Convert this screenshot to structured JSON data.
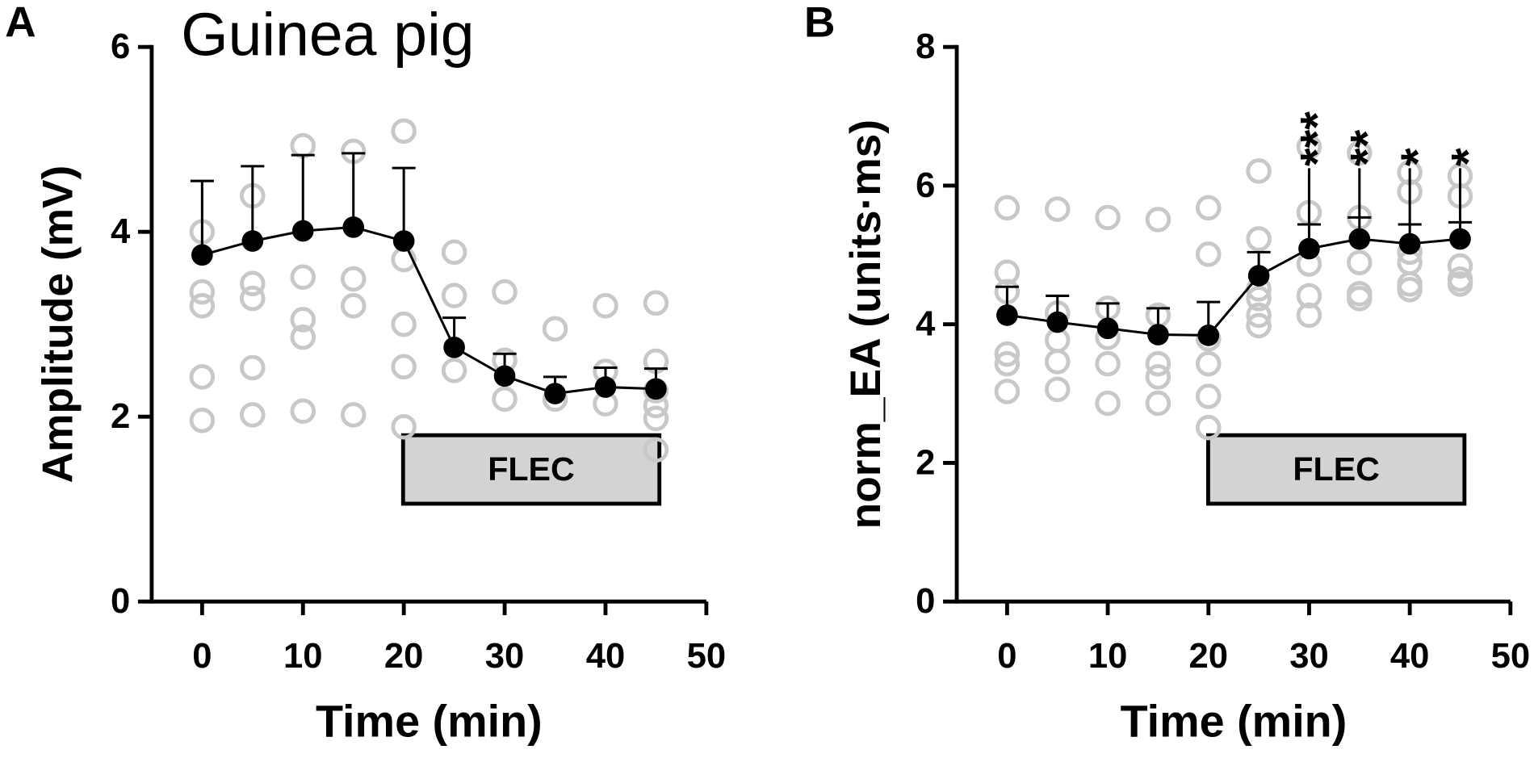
{
  "chart_data": [
    {
      "type": "line",
      "panel_label": "A",
      "title": "Guinea pig",
      "xlabel": "Time (min)",
      "ylabel": "Amplitude (mV)",
      "x": [
        0,
        5,
        10,
        15,
        20,
        25,
        30,
        35,
        40,
        45
      ],
      "values": [
        3.75,
        3.9,
        4.01,
        4.05,
        3.9,
        2.75,
        2.44,
        2.25,
        2.32,
        2.3
      ],
      "errors": [
        0.8,
        0.81,
        0.82,
        0.8,
        0.79,
        0.32,
        0.24,
        0.18,
        0.21,
        0.22
      ],
      "color": "#000000",
      "points": {
        "color": "#c8c8c8",
        "x": [
          0,
          0,
          0,
          0,
          0,
          5,
          5,
          5,
          5,
          5,
          10,
          10,
          10,
          10,
          10,
          15,
          15,
          15,
          15,
          20,
          20,
          20,
          20,
          20,
          25,
          25,
          25,
          30,
          30,
          30,
          35,
          35,
          40,
          40,
          40,
          45,
          45,
          45,
          45,
          45,
          45
        ],
        "y": [
          4.0,
          3.35,
          3.2,
          2.43,
          1.96,
          4.39,
          3.44,
          3.28,
          2.53,
          2.02,
          4.93,
          3.51,
          3.05,
          2.86,
          2.06,
          4.87,
          3.49,
          3.2,
          2.02,
          5.09,
          3.7,
          3.0,
          2.54,
          1.89,
          3.78,
          3.31,
          2.5,
          3.35,
          2.61,
          2.19,
          2.95,
          2.19,
          3.2,
          2.49,
          2.14,
          3.23,
          2.6,
          2.28,
          2.12,
          1.98,
          1.64
        ]
      },
      "xlim": [
        -5,
        50
      ],
      "xticks": [
        0,
        10,
        20,
        30,
        40,
        50
      ],
      "ylim": [
        0,
        6
      ],
      "yticks": [
        0,
        2,
        4,
        6
      ],
      "annotations": [
        "FLEC"
      ],
      "significance": []
    },
    {
      "type": "line",
      "panel_label": "B",
      "xlabel": "Time (min)",
      "ylabel": "norm_EA (units·ms)",
      "x": [
        0,
        5,
        10,
        15,
        20,
        25,
        30,
        35,
        40,
        45
      ],
      "values": [
        4.13,
        4.03,
        3.94,
        3.85,
        3.84,
        4.7,
        5.09,
        5.23,
        5.16,
        5.23
      ],
      "errors": [
        0.41,
        0.38,
        0.36,
        0.38,
        0.48,
        0.34,
        0.35,
        0.31,
        0.28,
        0.24
      ],
      "color": "#000000",
      "points": {
        "color": "#c8c8c8",
        "x": [
          0,
          0,
          0,
          0,
          0,
          0,
          5,
          5,
          5,
          5,
          5,
          10,
          10,
          10,
          10,
          10,
          15,
          15,
          15,
          15,
          15,
          20,
          20,
          20,
          20,
          20,
          20,
          25,
          25,
          25,
          25,
          25,
          25,
          30,
          30,
          30,
          30,
          30,
          35,
          35,
          35,
          35,
          35,
          40,
          40,
          40,
          40,
          40,
          40,
          45,
          45,
          45,
          45,
          45
        ],
        "y": [
          5.68,
          4.75,
          4.47,
          3.57,
          3.43,
          3.03,
          5.66,
          4.16,
          3.77,
          3.46,
          3.06,
          5.54,
          4.23,
          3.81,
          3.43,
          2.86,
          5.51,
          4.13,
          3.43,
          3.24,
          2.86,
          5.68,
          5.01,
          3.79,
          3.43,
          2.96,
          2.51,
          6.21,
          5.23,
          4.51,
          4.37,
          4.13,
          3.98,
          6.56,
          5.61,
          4.87,
          4.41,
          4.13,
          6.47,
          5.54,
          4.89,
          4.44,
          4.37,
          6.19,
          5.91,
          5.04,
          4.89,
          4.58,
          4.5,
          6.14,
          5.85,
          4.84,
          4.65,
          4.58
        ]
      },
      "xlim": [
        -5,
        50
      ],
      "xticks": [
        0,
        10,
        20,
        30,
        40,
        50
      ],
      "ylim": [
        0,
        8
      ],
      "yticks": [
        0,
        2,
        4,
        6,
        8
      ],
      "annotations": [
        "FLEC"
      ],
      "significance": [
        {
          "x": 30,
          "label": "***"
        },
        {
          "x": 35,
          "label": "**"
        },
        {
          "x": 40,
          "label": "*"
        },
        {
          "x": 45,
          "label": "*"
        }
      ]
    }
  ]
}
